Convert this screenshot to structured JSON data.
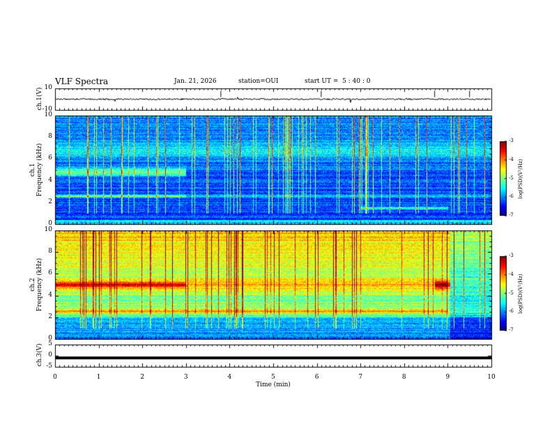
{
  "header": {
    "title": "VLF Spectra",
    "date": "Jan. 21, 2026",
    "station": "station=OUI",
    "start": "start UT =  5 : 40 : 0"
  },
  "chart_data": [
    {
      "type": "line",
      "ylabel": "ch.1(V)",
      "ylim": [
        -10,
        10
      ],
      "yticks": [
        "10",
        "-10"
      ],
      "series": [
        {
          "baseline": 0,
          "color": "#000000"
        }
      ]
    },
    {
      "type": "heatmap",
      "ylabel": "ch.1\nFrequency (kHz)",
      "ylim": [
        0,
        10
      ],
      "yticks": [
        "0",
        "2",
        "4",
        "6",
        "8",
        "10"
      ],
      "colorbar": {
        "label": "log(PSD)(V²/Hz)",
        "range": [
          -7,
          -3
        ],
        "ticks": [
          "-3",
          "-4",
          "-5",
          "-6",
          "-7"
        ]
      }
    },
    {
      "type": "heatmap",
      "ylabel": "ch.2\nFrequency (kHz)",
      "ylim": [
        0,
        10
      ],
      "yticks": [
        "0",
        "2",
        "4",
        "6",
        "8",
        "10"
      ],
      "colorbar": {
        "label": "log(PSD)(V²/Hz)",
        "range": [
          -7,
          -3
        ],
        "ticks": [
          "-3",
          "-4",
          "-5",
          "-6",
          "-7"
        ]
      }
    },
    {
      "type": "line",
      "ylabel": "ch.3(V)",
      "ylim": [
        -5,
        5
      ],
      "yticks": [
        "5",
        "0",
        "-5"
      ],
      "series": [
        {
          "baseline": -1,
          "color": "#000000"
        }
      ]
    }
  ],
  "xaxis": {
    "label": "Time (min)",
    "range": [
      0,
      10
    ],
    "ticks": [
      "0",
      "1",
      "2",
      "3",
      "4",
      "5",
      "6",
      "7",
      "8",
      "9",
      "10"
    ]
  }
}
